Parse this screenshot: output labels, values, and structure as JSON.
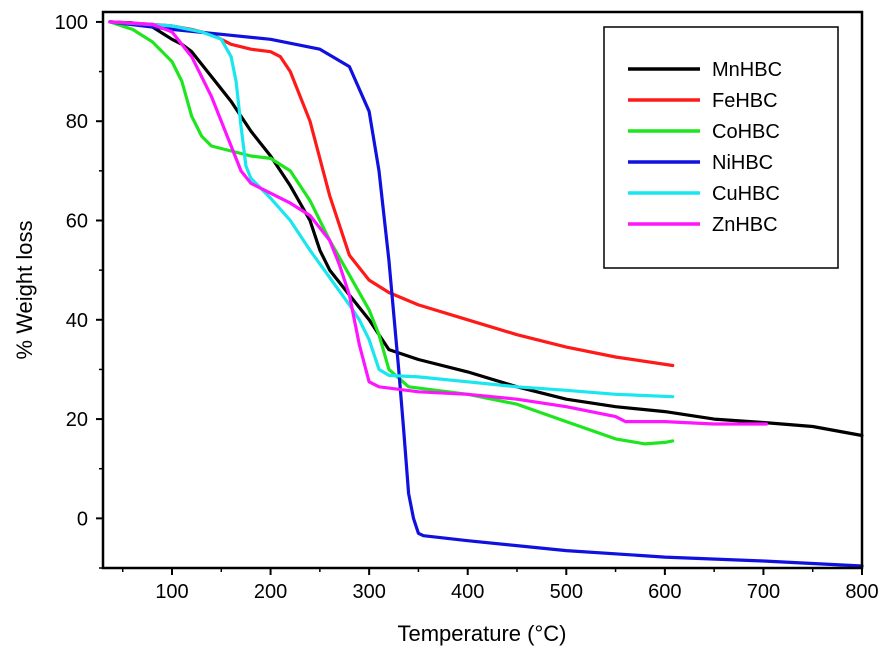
{
  "chart_data": {
    "type": "line",
    "title": "",
    "xlabel": "Temperature",
    "xlabel_unit": "(°C)",
    "ylabel": "% Weight loss",
    "xlim": [
      30,
      800
    ],
    "ylim": [
      -10,
      102
    ],
    "xticks": [
      100,
      200,
      300,
      400,
      500,
      600,
      700,
      800
    ],
    "yticks": [
      0,
      20,
      40,
      60,
      80,
      100
    ],
    "grid": false,
    "legend_position": "top-right",
    "series": [
      {
        "name": "MnHBC",
        "color": "#000000",
        "x": [
          37,
          60,
          80,
          100,
          110,
          120,
          140,
          160,
          180,
          200,
          220,
          240,
          250,
          260,
          280,
          300,
          320,
          350,
          400,
          450,
          500,
          550,
          600,
          650,
          700,
          750,
          800
        ],
        "y": [
          100,
          99.8,
          99,
          96.5,
          95.5,
          94,
          89,
          84,
          78,
          73,
          67,
          60,
          54,
          50,
          45,
          40,
          34,
          32,
          29.5,
          26.5,
          24,
          22.5,
          21.5,
          20,
          19.3,
          18.5,
          16.7
        ]
      },
      {
        "name": "FeHBC",
        "color": "#ff1a1a",
        "x": [
          37,
          80,
          100,
          120,
          140,
          160,
          180,
          200,
          210,
          220,
          240,
          260,
          280,
          300,
          320,
          350,
          400,
          450,
          500,
          550,
          608
        ],
        "y": [
          100,
          99.5,
          99.2,
          98.5,
          97.5,
          95.5,
          94.5,
          94,
          93,
          90,
          80,
          65,
          53,
          48,
          45.5,
          43,
          40,
          37,
          34.5,
          32.5,
          30.8
        ]
      },
      {
        "name": "CoHBC",
        "color": "#1ee61e",
        "x": [
          37,
          60,
          80,
          100,
          110,
          120,
          130,
          140,
          160,
          180,
          200,
          220,
          240,
          260,
          280,
          300,
          310,
          320,
          340,
          400,
          450,
          500,
          550,
          580,
          600,
          608
        ],
        "y": [
          100,
          98.5,
          96,
          92,
          88,
          81,
          77,
          75,
          74,
          73,
          72.5,
          70,
          64,
          56,
          49,
          42,
          37,
          30,
          26.5,
          25,
          23,
          19.5,
          16,
          15,
          15.3,
          15.6
        ]
      },
      {
        "name": "NiHBC",
        "color": "#1010e0",
        "x": [
          37,
          100,
          150,
          200,
          250,
          280,
          300,
          310,
          320,
          330,
          335,
          340,
          345,
          350,
          355,
          400,
          500,
          600,
          700,
          800
        ],
        "y": [
          100,
          98.5,
          97.5,
          96.5,
          94.5,
          91,
          82,
          70,
          52,
          30,
          18,
          5,
          0,
          -3,
          -3.5,
          -4.5,
          -6.5,
          -7.8,
          -8.6,
          -9.6
        ]
      },
      {
        "name": "CuHBC",
        "color": "#1ae6f0",
        "x": [
          37,
          100,
          130,
          150,
          160,
          165,
          170,
          175,
          180,
          200,
          220,
          240,
          260,
          280,
          290,
          300,
          310,
          320,
          350,
          400,
          450,
          500,
          550,
          608
        ],
        "y": [
          100,
          99.2,
          98,
          96.5,
          93,
          88,
          79,
          71,
          68.5,
          64.5,
          60,
          54,
          48.5,
          43,
          40,
          36,
          30,
          28.8,
          28.5,
          27.5,
          26.5,
          25.8,
          25,
          24.5
        ]
      },
      {
        "name": "ZnHBC",
        "color": "#ff14ff",
        "x": [
          37,
          80,
          100,
          120,
          140,
          160,
          170,
          180,
          200,
          220,
          240,
          260,
          270,
          280,
          290,
          300,
          310,
          350,
          400,
          450,
          500,
          550,
          560,
          600,
          650,
          703
        ],
        "y": [
          100,
          99.5,
          98,
          93,
          85,
          75,
          70,
          67.5,
          65.5,
          63.5,
          61,
          56,
          51,
          45,
          35,
          27.5,
          26.5,
          25.5,
          25,
          24,
          22.5,
          20.5,
          19.5,
          19.5,
          19,
          19
        ]
      }
    ]
  }
}
